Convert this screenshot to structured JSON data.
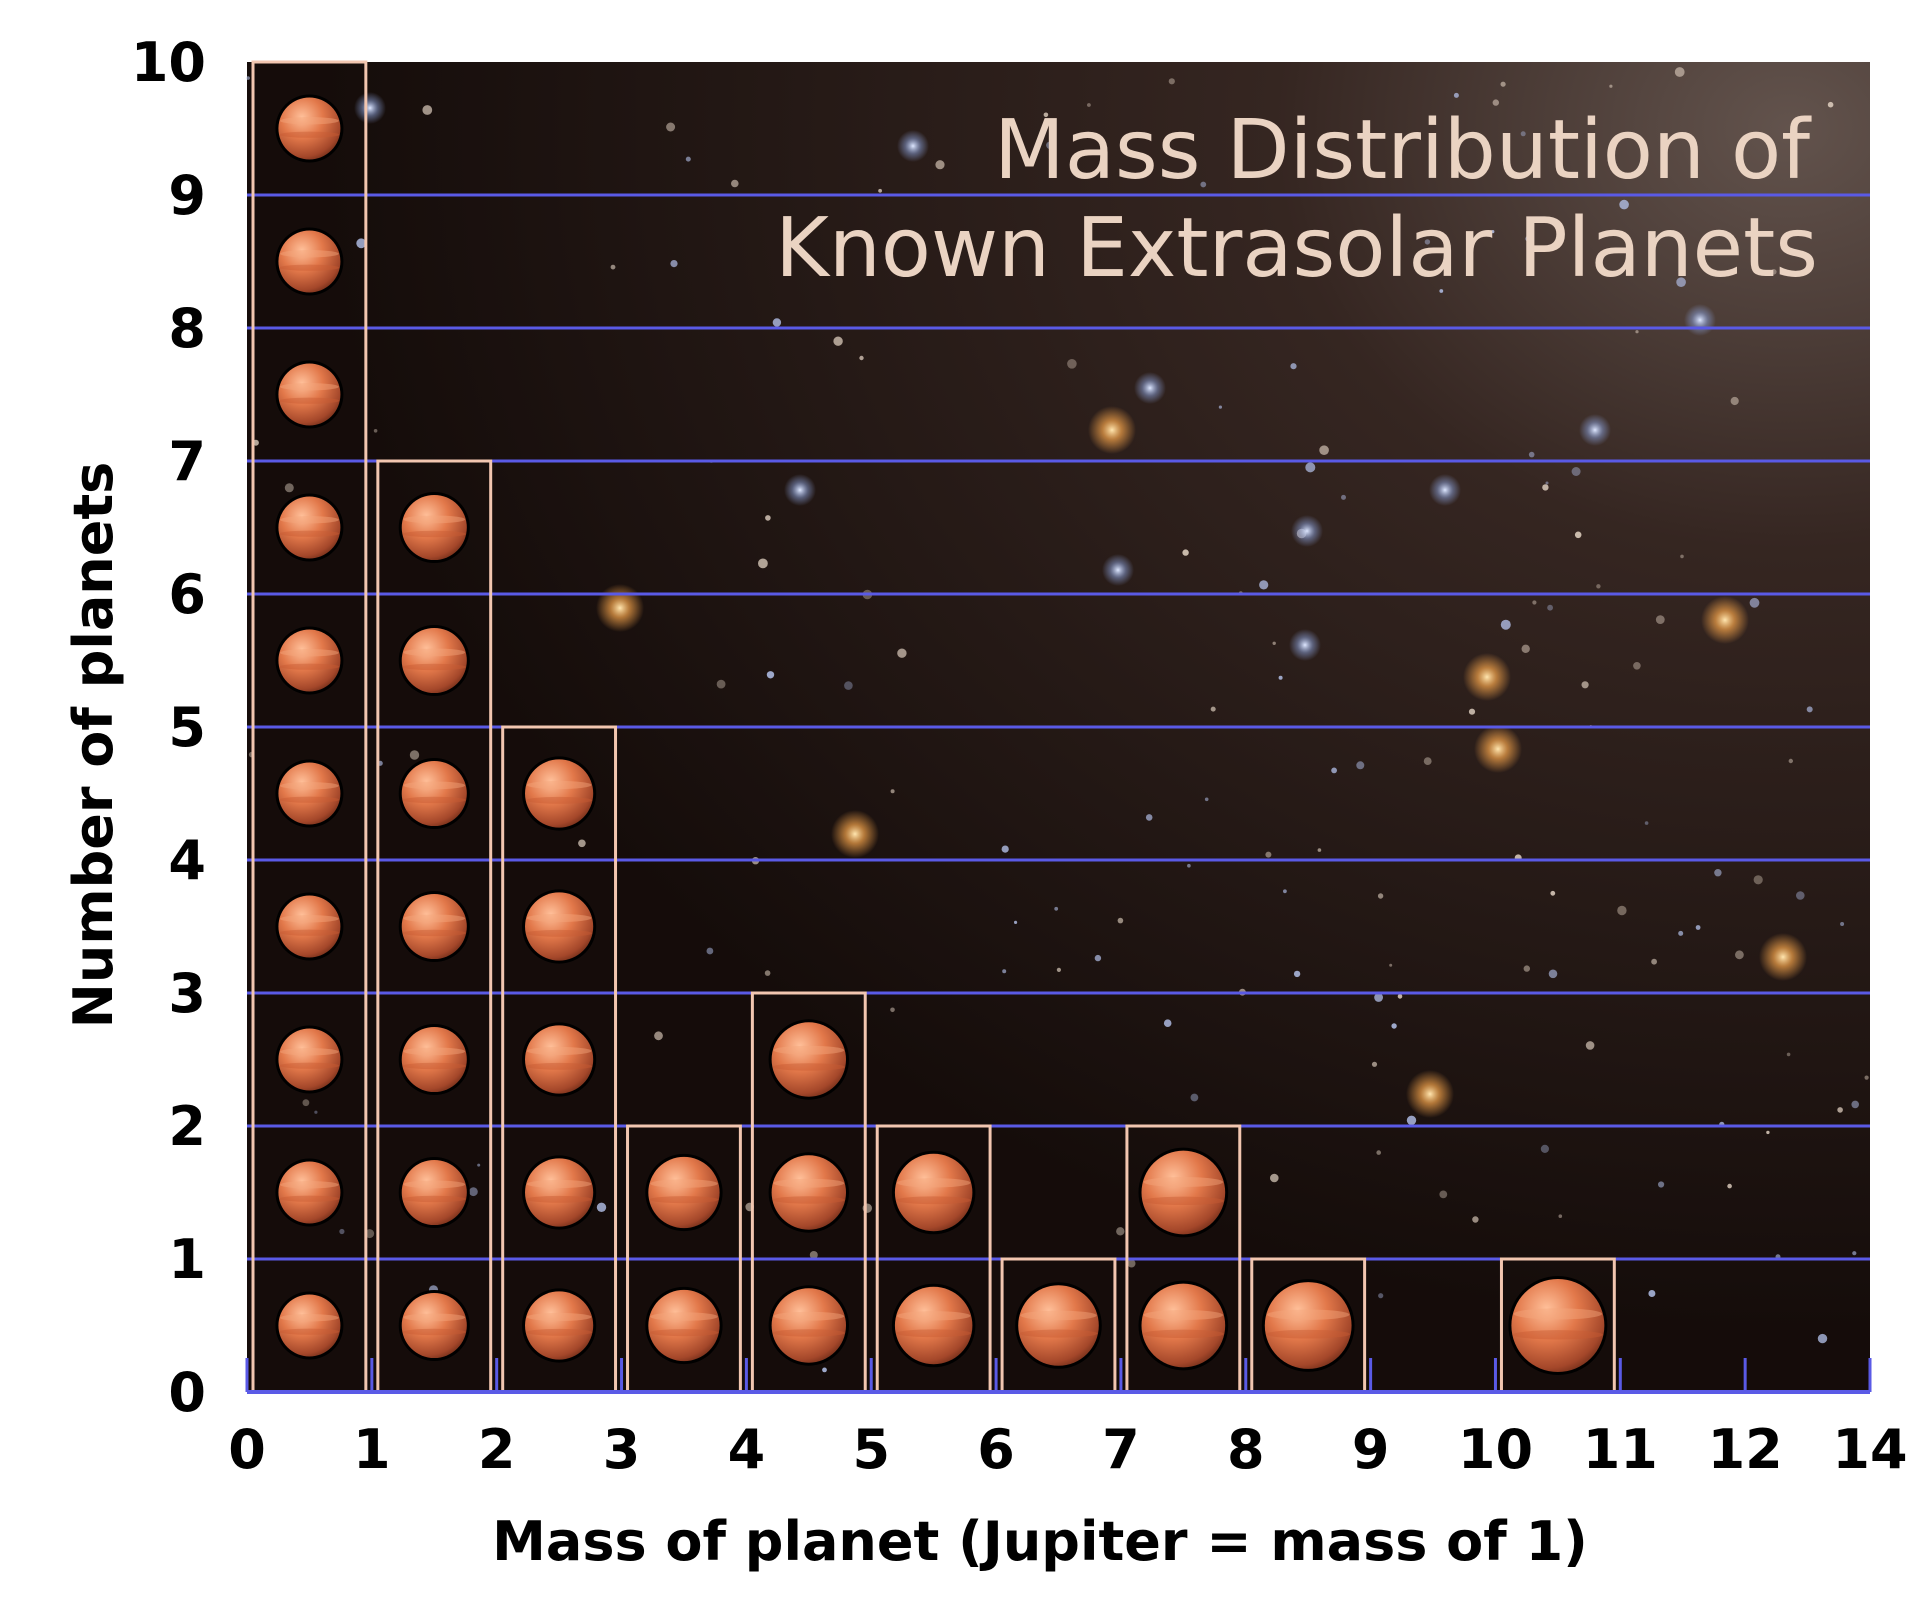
{
  "chart_data": {
    "type": "bar",
    "title": [
      "Mass Distribution of",
      "Known Extrasolar Planets"
    ],
    "xlabel": "Mass of planet (Jupiter = mass of 1)",
    "ylabel": "Number of planets",
    "x_ticks": [
      "0",
      "1",
      "2",
      "3",
      "4",
      "5",
      "6",
      "7",
      "8",
      "9",
      "10",
      "11",
      "12",
      "14"
    ],
    "y_ticks": [
      "0",
      "1",
      "2",
      "3",
      "4",
      "5",
      "6",
      "7",
      "8",
      "9",
      "10"
    ],
    "xlim": [
      0,
      13
    ],
    "ylim": [
      0,
      10
    ],
    "bins": [
      {
        "start": 0,
        "end": 1,
        "count": 10
      },
      {
        "start": 1,
        "end": 2,
        "count": 7
      },
      {
        "start": 2,
        "end": 3,
        "count": 5
      },
      {
        "start": 3,
        "end": 4,
        "count": 2
      },
      {
        "start": 4,
        "end": 5,
        "count": 3
      },
      {
        "start": 5,
        "end": 6,
        "count": 2
      },
      {
        "start": 6,
        "end": 7,
        "count": 1
      },
      {
        "start": 7,
        "end": 8,
        "count": 2
      },
      {
        "start": 8,
        "end": 9,
        "count": 1
      },
      {
        "start": 9,
        "end": 10,
        "count": 0
      },
      {
        "start": 10,
        "end": 11,
        "count": 1
      },
      {
        "start": 11,
        "end": 12,
        "count": 0
      },
      {
        "start": 12,
        "end": 13,
        "count": 0
      }
    ],
    "grid": true,
    "colors": {
      "background": "#1a0f0c",
      "gridline": "#5a5ae6",
      "bar_outline": "#f2c6b0",
      "planet": "#e07a48",
      "title": "#ead3c2"
    },
    "mark_icon": "planet-icon"
  }
}
